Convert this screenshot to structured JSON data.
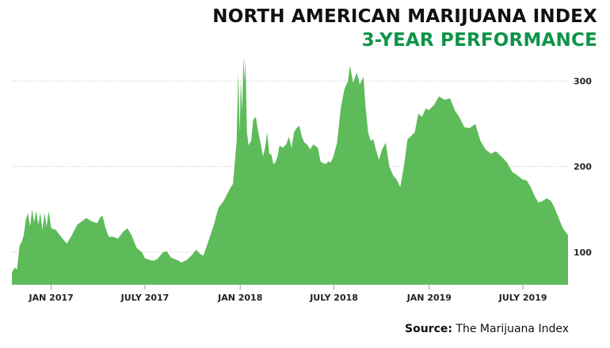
{
  "colors": {
    "accent": "#0d9448",
    "area": "#5ebb5a",
    "grid": "#c8c8c8",
    "text": "#111111"
  },
  "header": {
    "title": "NORTH AMERICAN MARIJUANA INDEX",
    "subtitle": "3-YEAR PERFORMANCE"
  },
  "footer": {
    "source_label": "Source:",
    "source_value": "The Marijuana Index"
  },
  "chart_data": {
    "type": "area",
    "title": "NORTH AMERICAN MARIJUANA INDEX",
    "subtitle": "3-YEAR PERFORMANCE",
    "xlabel": "",
    "ylabel": "",
    "x_range": [
      "2016-10-17",
      "2019-09-26"
    ],
    "ylim": [
      62,
      330
    ],
    "grid": true,
    "legend": "none",
    "x_ticks": [
      {
        "date": "2017-01-01",
        "label": "JAN 2017"
      },
      {
        "date": "2017-07-01",
        "label": "JULY 2017"
      },
      {
        "date": "2018-01-01",
        "label": "JAN 2018"
      },
      {
        "date": "2018-07-01",
        "label": "JULY 2018"
      },
      {
        "date": "2019-01-01",
        "label": "JAN 2019"
      },
      {
        "date": "2019-07-01",
        "label": "JULY 2019"
      }
    ],
    "y_ticks": [
      {
        "value": 100,
        "label": "100"
      },
      {
        "value": 200,
        "label": "200"
      },
      {
        "value": 300,
        "label": "300"
      }
    ],
    "series": [
      {
        "values": [
          [
            "2016-10-17",
            76
          ],
          [
            "2016-10-22",
            82
          ],
          [
            "2016-10-27",
            80
          ],
          [
            "2016-11-01",
            108
          ],
          [
            "2016-11-05",
            112
          ],
          [
            "2016-11-09",
            120
          ],
          [
            "2016-11-13",
            138
          ],
          [
            "2016-11-17",
            146
          ],
          [
            "2016-11-21",
            130
          ],
          [
            "2016-11-25",
            150
          ],
          [
            "2016-11-29",
            135
          ],
          [
            "2016-12-03",
            148
          ],
          [
            "2016-12-07",
            132
          ],
          [
            "2016-12-11",
            146
          ],
          [
            "2016-12-15",
            126
          ],
          [
            "2016-12-19",
            146
          ],
          [
            "2016-12-23",
            130
          ],
          [
            "2016-12-27",
            148
          ],
          [
            "2017-01-01",
            128
          ],
          [
            "2017-01-10",
            126
          ],
          [
            "2017-01-20",
            118
          ],
          [
            "2017-01-31",
            110
          ],
          [
            "2017-02-10",
            120
          ],
          [
            "2017-02-20",
            132
          ],
          [
            "2017-03-01",
            136
          ],
          [
            "2017-03-10",
            140
          ],
          [
            "2017-03-20",
            136
          ],
          [
            "2017-03-31",
            134
          ],
          [
            "2017-04-05",
            140
          ],
          [
            "2017-04-10",
            143
          ],
          [
            "2017-04-15",
            130
          ],
          [
            "2017-04-22",
            118
          ],
          [
            "2017-04-30",
            118
          ],
          [
            "2017-05-10",
            116
          ],
          [
            "2017-05-20",
            124
          ],
          [
            "2017-05-28",
            128
          ],
          [
            "2017-06-05",
            120
          ],
          [
            "2017-06-15",
            105
          ],
          [
            "2017-06-25",
            100
          ],
          [
            "2017-07-01",
            93
          ],
          [
            "2017-07-10",
            91
          ],
          [
            "2017-07-18",
            90
          ],
          [
            "2017-07-25",
            92
          ],
          [
            "2017-08-05",
            100
          ],
          [
            "2017-08-12",
            101
          ],
          [
            "2017-08-20",
            94
          ],
          [
            "2017-08-31",
            91
          ],
          [
            "2017-09-10",
            88
          ],
          [
            "2017-09-20",
            91
          ],
          [
            "2017-09-30",
            97
          ],
          [
            "2017-10-08",
            103
          ],
          [
            "2017-10-15",
            98
          ],
          [
            "2017-10-22",
            96
          ],
          [
            "2017-10-31",
            112
          ],
          [
            "2017-11-10",
            130
          ],
          [
            "2017-11-20",
            152
          ],
          [
            "2017-11-30",
            160
          ],
          [
            "2017-12-10",
            172
          ],
          [
            "2017-12-18",
            180
          ],
          [
            "2017-12-25",
            230
          ],
          [
            "2017-12-28",
            310
          ],
          [
            "2017-12-31",
            240
          ],
          [
            "2018-01-02",
            300
          ],
          [
            "2018-01-05",
            265
          ],
          [
            "2018-01-07",
            328
          ],
          [
            "2018-01-09",
            300
          ],
          [
            "2018-01-11",
            325
          ],
          [
            "2018-01-14",
            240
          ],
          [
            "2018-01-17",
            225
          ],
          [
            "2018-01-22",
            230
          ],
          [
            "2018-01-26",
            255
          ],
          [
            "2018-01-31",
            258
          ],
          [
            "2018-02-05",
            240
          ],
          [
            "2018-02-10",
            225
          ],
          [
            "2018-02-14",
            212
          ],
          [
            "2018-02-18",
            222
          ],
          [
            "2018-02-22",
            240
          ],
          [
            "2018-02-26",
            215
          ],
          [
            "2018-03-02",
            214
          ],
          [
            "2018-03-06",
            203
          ],
          [
            "2018-03-10",
            205
          ],
          [
            "2018-03-14",
            212
          ],
          [
            "2018-03-18",
            225
          ],
          [
            "2018-03-24",
            222
          ],
          [
            "2018-03-31",
            226
          ],
          [
            "2018-04-05",
            235
          ],
          [
            "2018-04-10",
            222
          ],
          [
            "2018-04-15",
            240
          ],
          [
            "2018-04-20",
            245
          ],
          [
            "2018-04-25",
            248
          ],
          [
            "2018-04-30",
            235
          ],
          [
            "2018-05-05",
            228
          ],
          [
            "2018-05-10",
            226
          ],
          [
            "2018-05-16",
            220
          ],
          [
            "2018-05-22",
            226
          ],
          [
            "2018-05-31",
            222
          ],
          [
            "2018-06-05",
            206
          ],
          [
            "2018-06-10",
            204
          ],
          [
            "2018-06-15",
            203
          ],
          [
            "2018-06-20",
            206
          ],
          [
            "2018-06-25",
            205
          ],
          [
            "2018-06-30",
            212
          ],
          [
            "2018-07-07",
            228
          ],
          [
            "2018-07-14",
            268
          ],
          [
            "2018-07-21",
            290
          ],
          [
            "2018-07-28",
            300
          ],
          [
            "2018-08-01",
            318
          ],
          [
            "2018-08-07",
            298
          ],
          [
            "2018-08-14",
            310
          ],
          [
            "2018-08-20",
            296
          ],
          [
            "2018-08-27",
            305
          ],
          [
            "2018-08-31",
            270
          ],
          [
            "2018-09-05",
            240
          ],
          [
            "2018-09-10",
            230
          ],
          [
            "2018-09-15",
            232
          ],
          [
            "2018-09-20",
            220
          ],
          [
            "2018-09-26",
            208
          ],
          [
            "2018-10-02",
            220
          ],
          [
            "2018-10-09",
            228
          ],
          [
            "2018-10-16",
            200
          ],
          [
            "2018-10-23",
            190
          ],
          [
            "2018-10-31",
            184
          ],
          [
            "2018-11-06",
            176
          ],
          [
            "2018-11-13",
            200
          ],
          [
            "2018-11-20",
            232
          ],
          [
            "2018-11-27",
            236
          ],
          [
            "2018-12-04",
            240
          ],
          [
            "2018-12-11",
            262
          ],
          [
            "2018-12-18",
            258
          ],
          [
            "2018-12-25",
            268
          ],
          [
            "2018-12-31",
            266
          ],
          [
            "2019-01-10",
            272
          ],
          [
            "2019-01-20",
            282
          ],
          [
            "2019-01-31",
            278
          ],
          [
            "2019-02-10",
            280
          ],
          [
            "2019-02-20",
            265
          ],
          [
            "2019-02-28",
            258
          ],
          [
            "2019-03-10",
            246
          ],
          [
            "2019-03-20",
            245
          ],
          [
            "2019-03-31",
            250
          ],
          [
            "2019-04-10",
            230
          ],
          [
            "2019-04-20",
            220
          ],
          [
            "2019-04-30",
            215
          ],
          [
            "2019-05-10",
            218
          ],
          [
            "2019-05-20",
            212
          ],
          [
            "2019-05-31",
            205
          ],
          [
            "2019-06-10",
            194
          ],
          [
            "2019-06-20",
            190
          ],
          [
            "2019-06-30",
            185
          ],
          [
            "2019-07-08",
            184
          ],
          [
            "2019-07-16",
            176
          ],
          [
            "2019-07-24",
            165
          ],
          [
            "2019-07-31",
            158
          ],
          [
            "2019-08-08",
            160
          ],
          [
            "2019-08-16",
            163
          ],
          [
            "2019-08-24",
            160
          ],
          [
            "2019-08-31",
            152
          ],
          [
            "2019-09-08",
            140
          ],
          [
            "2019-09-16",
            128
          ],
          [
            "2019-09-26",
            120
          ]
        ]
      }
    ]
  }
}
